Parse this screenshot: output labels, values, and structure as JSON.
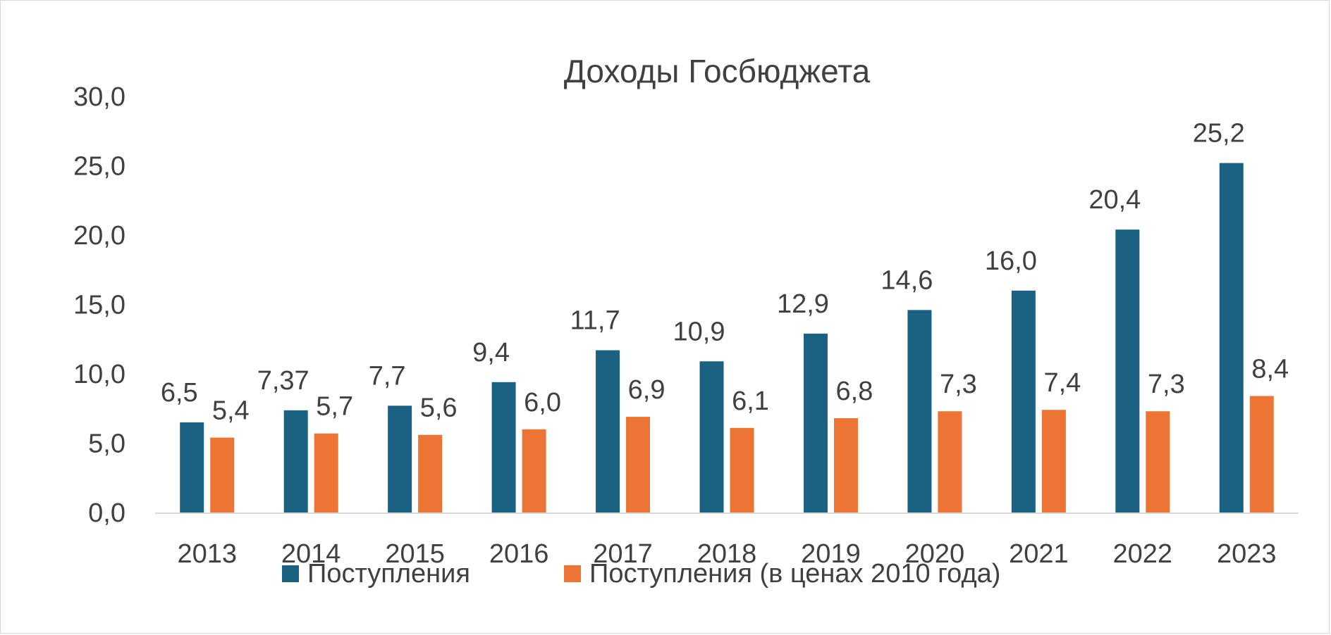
{
  "chart_data": {
    "type": "bar",
    "title": "Доходы Госбюджета",
    "categories": [
      "2013",
      "2014",
      "2015",
      "2016",
      "2017",
      "2018",
      "2019",
      "2020",
      "2021",
      "2022",
      "2023"
    ],
    "series": [
      {
        "name": "Поступления",
        "color": "#1b6282",
        "values": [
          6.5,
          7.37,
          7.7,
          9.4,
          11.7,
          10.9,
          12.9,
          14.6,
          16.0,
          20.4,
          25.2
        ],
        "labels": [
          "6,5",
          "7,37",
          "7,7",
          "9,4",
          "11,7",
          "10,9",
          "12,9",
          "14,6",
          "16,0",
          "20,4",
          "25,2"
        ]
      },
      {
        "name": "Поступления (в ценах 2010 года)",
        "color": "#ec7434",
        "values": [
          5.4,
          5.7,
          5.6,
          6.0,
          6.9,
          6.1,
          6.8,
          7.3,
          7.4,
          7.3,
          8.4
        ],
        "labels": [
          "5,4",
          "5,7",
          "5,6",
          "6,0",
          "6,9",
          "6,1",
          "6,8",
          "7,3",
          "7,4",
          "7,3",
          "8,4"
        ]
      }
    ],
    "ylim": [
      0,
      30
    ],
    "yticks": [
      0,
      5,
      10,
      15,
      20,
      25,
      30
    ],
    "ytick_labels": [
      "0,0",
      "5,0",
      "10,0",
      "15,0",
      "20,0",
      "25,0",
      "30,0"
    ],
    "xlabel": "",
    "ylabel": "",
    "grid": false,
    "legend_position": "bottom"
  }
}
